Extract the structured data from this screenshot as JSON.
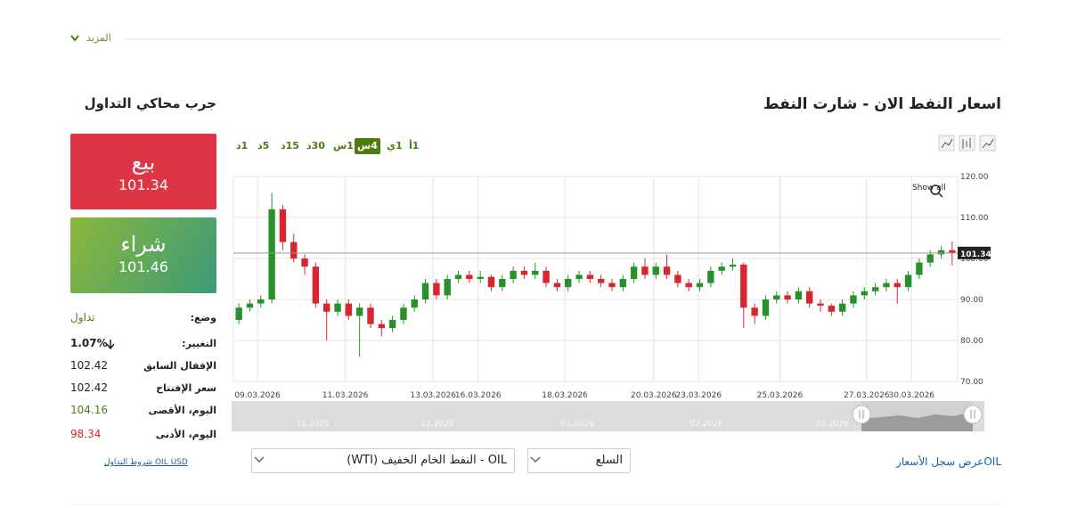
{
  "header": {
    "more": "المزيد"
  },
  "trade_panel": {
    "heading": "جرب محاكي التداول",
    "sell": {
      "label": "بيع",
      "price": "101.34"
    },
    "buy": {
      "label": "شراء",
      "price": "101.46"
    },
    "stats": [
      {
        "label": "وضع:",
        "value": "تداول",
        "color": "#4a7c0e"
      },
      {
        "label": "التغيير:",
        "value": "1.07%",
        "color": "#222222"
      },
      {
        "label": "الإقفال السابق",
        "value": "102.42",
        "color": "#222222"
      },
      {
        "label": "سعر الإفتتاح",
        "value": "102.42",
        "color": "#222222"
      },
      {
        "label": "اليوم، الأقصى",
        "value": "104.16",
        "color": "#4a7c0e"
      },
      {
        "label": "اليوم، الأدنى",
        "value": "98.34",
        "color": "#d9262e"
      }
    ],
    "terms_link": "OIL USD شروط التداول"
  },
  "timeframes": [
    "1أ",
    "1ي",
    "4س",
    "1س",
    "30د",
    "15د",
    "5د",
    "1د"
  ],
  "active_timeframe": "4س",
  "chart_data": {
    "type": "candlestick",
    "title": "اسعار النفط الان - شارت النفط",
    "x": [
      0.5,
      1.5,
      2.5,
      3.5,
      4.5,
      5.5,
      6.5,
      7.5,
      8.5,
      9.5,
      10.5,
      11.5,
      12.5,
      13.5,
      14.5,
      15.5,
      16.5,
      17.5,
      18.5,
      19.5,
      20.5,
      21.5,
      22.5,
      23.5,
      24.5,
      25.5,
      26.5,
      27.5,
      28.5,
      29.5,
      30.5,
      31.5,
      32.5,
      33.5,
      34.5,
      35.5,
      36.5,
      37.5,
      38.5,
      39.5,
      40.5,
      41.5,
      42.5,
      43.5,
      44.5,
      45.5,
      46.5,
      47.5,
      48.5,
      49.5,
      50.5,
      51.5,
      52.5,
      53.5,
      54.5,
      55.5,
      56.5,
      57.5,
      58.5,
      59.5,
      60.5,
      61.5,
      62.5,
      63.5,
      64.5,
      65.5
    ],
    "open": [
      85,
      88,
      89,
      90,
      112,
      104,
      100,
      98,
      89,
      87,
      89,
      86,
      88,
      84,
      83,
      85,
      88,
      90,
      94,
      91,
      95,
      96,
      95,
      95.5,
      93,
      95,
      97,
      96,
      97,
      94,
      93,
      95,
      96,
      95,
      94,
      93,
      95,
      98,
      96,
      98,
      96,
      94,
      93,
      94,
      97,
      98,
      98.5,
      88,
      86,
      90,
      91,
      90,
      92,
      89,
      88.5,
      87,
      89,
      91,
      92,
      93,
      94,
      93,
      96,
      99,
      101,
      102
    ],
    "high": [
      89,
      90,
      91,
      116,
      113,
      106,
      101,
      99,
      90,
      90,
      90,
      89,
      89,
      85,
      86,
      89,
      91,
      95,
      95,
      96,
      97,
      97,
      97,
      96,
      96,
      98,
      98,
      99,
      98,
      95,
      96,
      97,
      97,
      96,
      95,
      96,
      99,
      100,
      99,
      101,
      97,
      95,
      95,
      98,
      99,
      100,
      99,
      89,
      91,
      92,
      92,
      93,
      93,
      90,
      89,
      90,
      92,
      93,
      94,
      95,
      95,
      97,
      100,
      102,
      103,
      104.16
    ],
    "low": [
      84,
      87,
      88,
      89,
      102,
      99,
      96,
      88,
      80,
      86,
      85,
      76,
      83,
      81,
      82,
      84,
      87,
      89,
      90,
      90,
      94,
      94,
      94,
      92,
      92,
      94,
      95,
      95,
      93,
      92,
      92,
      94,
      94,
      93,
      92,
      92,
      94,
      95,
      95,
      95,
      93,
      92,
      92,
      93,
      96,
      97,
      83,
      84,
      85,
      89,
      89,
      89,
      88,
      87,
      86,
      86,
      88,
      90,
      91,
      92,
      89,
      92,
      95,
      98,
      100,
      98.34
    ],
    "close": [
      88,
      89,
      90,
      112,
      104,
      100,
      98,
      89,
      87,
      89,
      86,
      88,
      84,
      83,
      85,
      88,
      90,
      94,
      91,
      95,
      96,
      95,
      95.5,
      93,
      95,
      97,
      96,
      97,
      94,
      93,
      95,
      96,
      95,
      94,
      93,
      95,
      98,
      96,
      98,
      96,
      94,
      93,
      94,
      97,
      98,
      98.5,
      88,
      86,
      90,
      91,
      90,
      92,
      89,
      88.5,
      87,
      89,
      91,
      92,
      93,
      94,
      93,
      96,
      99,
      101,
      102,
      101.34
    ],
    "up_color": "#27922c",
    "down_color": "#d9262e",
    "xlim": [
      0,
      66
    ],
    "xticks": [
      {
        "value": 2.2,
        "label": "09.03.2026"
      },
      {
        "value": 10.2,
        "label": "11.03.2026"
      },
      {
        "value": 18.2,
        "label": "13.03.2026"
      },
      {
        "value": 22.3,
        "label": "16.03.2026"
      },
      {
        "value": 30.2,
        "label": "18.03.2026"
      },
      {
        "value": 38.3,
        "label": "20.03.2026"
      },
      {
        "value": 42.4,
        "label": "23.03.2026"
      },
      {
        "value": 49.8,
        "label": "25.03.2026"
      },
      {
        "value": 57.7,
        "label": "27.03.2026"
      },
      {
        "value": 61.8,
        "label": "30.03.2026"
      }
    ],
    "ylim": [
      70,
      120
    ],
    "yticks": [
      {
        "value": 70,
        "label": "70.00"
      },
      {
        "value": 80,
        "label": "80.00"
      },
      {
        "value": 90,
        "label": "90.00"
      },
      {
        "value": 100,
        "label": "100.00"
      },
      {
        "value": 110,
        "label": "110.00"
      },
      {
        "value": 120,
        "label": "120.00"
      }
    ],
    "grid": true
  },
  "navigator": {
    "labels": [
      "11.2025",
      "12.2025",
      "01.2026",
      "02.2026",
      "03.2026"
    ]
  },
  "controls": {
    "show_all": "Show all",
    "instrument": "OIL - النفط الخام الخفيف (WTI)",
    "category": "السلع",
    "history_link": "OILعرض سجل الأسعار"
  }
}
